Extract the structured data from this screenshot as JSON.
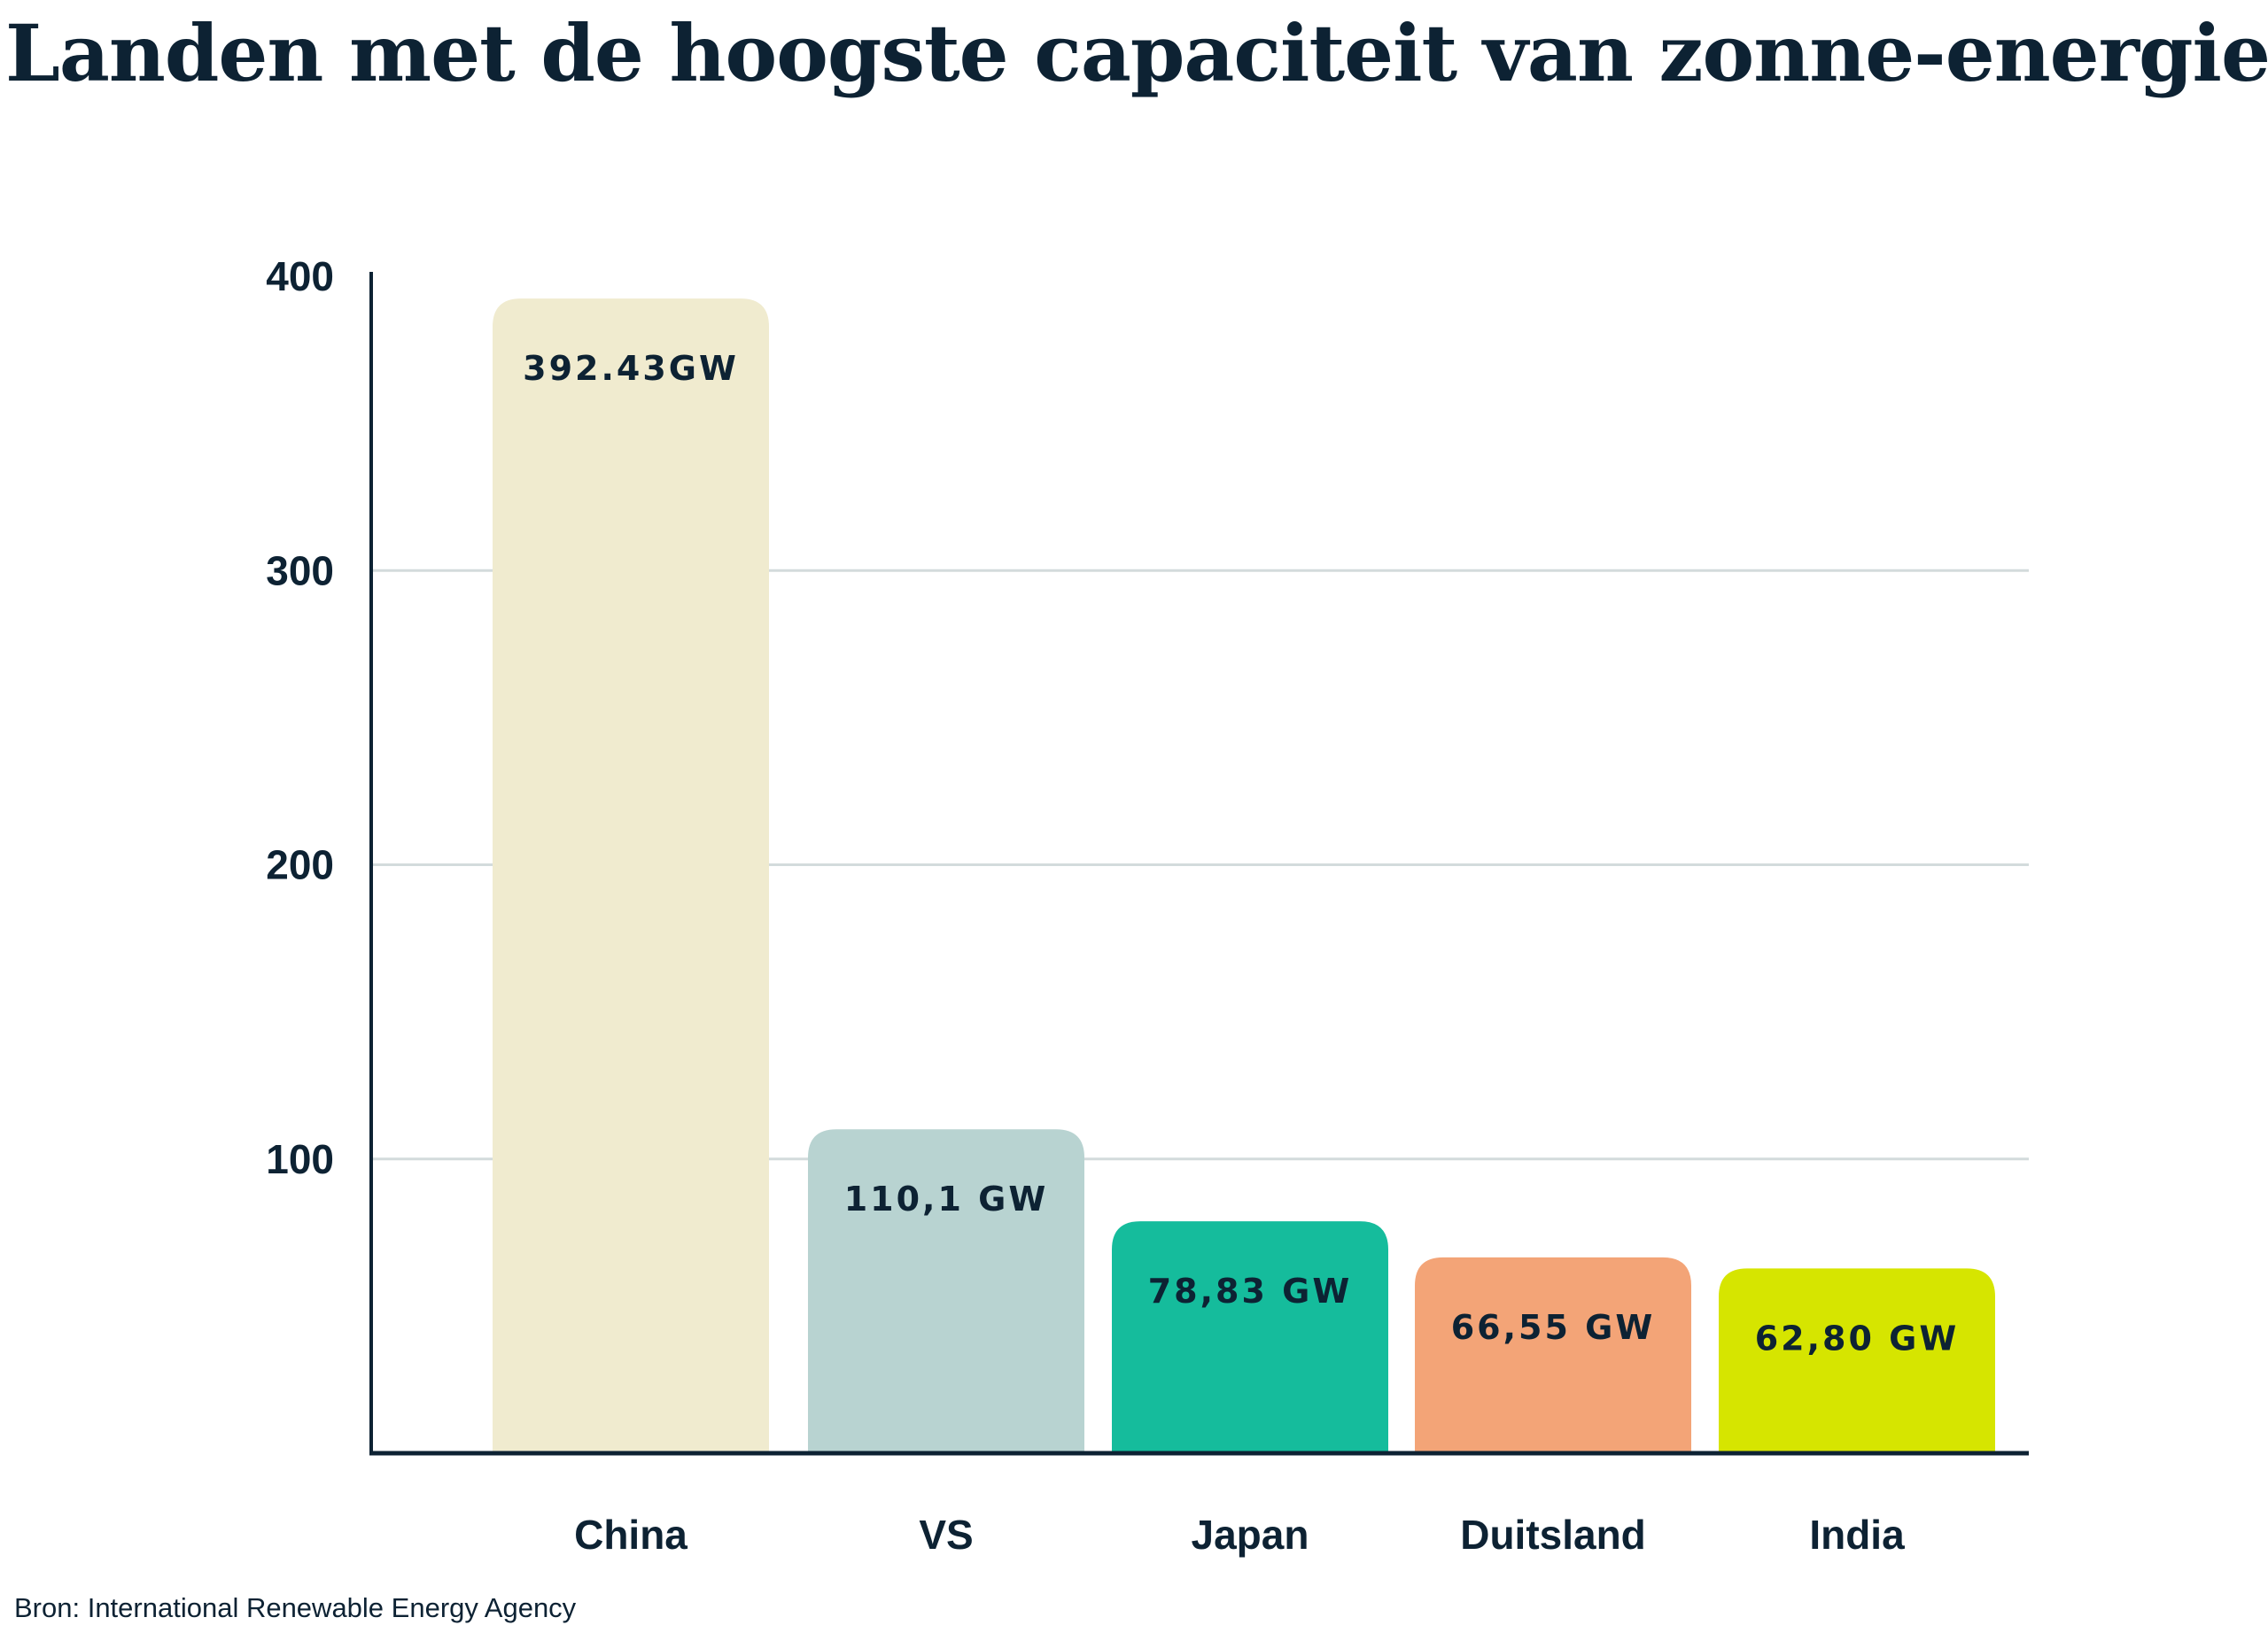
{
  "chart_data": {
    "type": "bar",
    "title": "Landen met de hoogste capaciteit van zonne-energie",
    "categories": [
      "China",
      "VS",
      "Japan",
      "Duitsland",
      "India"
    ],
    "values": [
      392.43,
      110.1,
      78.83,
      66.55,
      62.8
    ],
    "data_labels": [
      "392.43GW",
      "110,1 GW",
      "78,83 GW",
      "66,55 GW",
      "62,80 GW"
    ],
    "colors": [
      "#F0EBCF",
      "#B8D3D1",
      "#15BC9C",
      "#F3A477",
      "#D6E500"
    ],
    "ylim": [
      0,
      400
    ],
    "yticks": [
      "100",
      "200",
      "300",
      "400"
    ],
    "ytick_values": [
      100,
      200,
      300,
      400
    ],
    "grid": true,
    "xlabel": "",
    "ylabel": "",
    "source": "Bron: International Renewable Energy Agency",
    "text_color": "#0D2233",
    "grid_color": "#D3DBDC"
  }
}
